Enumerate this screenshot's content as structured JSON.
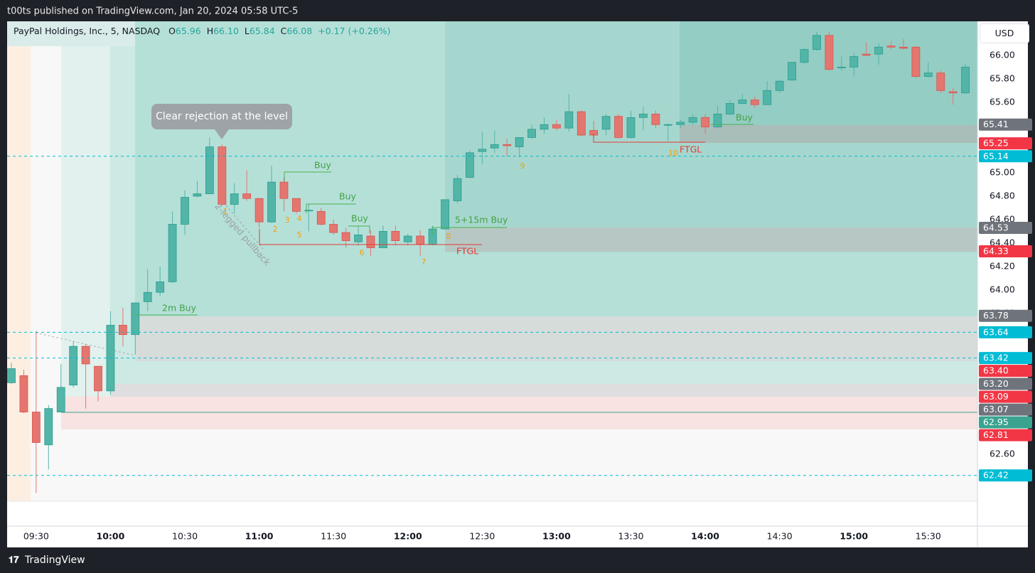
{
  "published": "t00ts published on TradingView.com, Jan 20, 2024 05:58 UTC-5",
  "brand": "TradingView",
  "chart_data": {
    "type": "candlestick",
    "title": "PayPal Holdings, Inc., 5, NASDAQ",
    "ohlc_legend": [
      {
        "key": "O",
        "value": "65.96"
      },
      {
        "key": "H",
        "value": "66.10"
      },
      {
        "key": "L",
        "value": "65.84"
      },
      {
        "key": "C",
        "value": "66.08"
      }
    ],
    "change": "+0.17 (+0.26%)",
    "currency": "USD",
    "categories": [
      null,
      null,
      "09:30",
      null,
      null,
      null,
      null,
      null,
      "10:00",
      null,
      null,
      null,
      null,
      null,
      "10:30",
      null,
      null,
      null,
      null,
      null,
      "11:00",
      null,
      null,
      null,
      null,
      null,
      "11:30",
      null,
      null,
      null,
      null,
      null,
      "12:00",
      null,
      null,
      null,
      null,
      null,
      "12:30",
      null,
      null,
      null,
      null,
      null,
      "13:00",
      null,
      null,
      null,
      null,
      null,
      "13:30",
      null,
      null,
      null,
      null,
      null,
      "14:00",
      null,
      null,
      null,
      null,
      null,
      "14:30",
      null,
      null,
      null,
      null,
      null,
      "15:00",
      null,
      null,
      null,
      null,
      null,
      "15:30",
      null,
      null,
      null
    ],
    "open": [
      63.21,
      63.27,
      62.96,
      62.68,
      62.96,
      63.19,
      63.52,
      63.35,
      63.14,
      63.7,
      63.62,
      63.9,
      63.98,
      64.07,
      64.56,
      64.8,
      64.82,
      65.22,
      64.73,
      64.82,
      64.78,
      64.58,
      64.92,
      64.78,
      64.68,
      64.67,
      64.56,
      64.49,
      64.41,
      64.46,
      64.36,
      64.5,
      64.41,
      64.46,
      64.39,
      64.52,
      64.76,
      64.96,
      65.18,
      65.21,
      65.24,
      65.22,
      65.3,
      65.37,
      65.41,
      65.38,
      65.52,
      65.36,
      65.37,
      65.48,
      65.3,
      65.47,
      65.5,
      65.41,
      65.41,
      65.43,
      65.47,
      65.39,
      65.5,
      65.59,
      65.62,
      65.58,
      65.7,
      65.79,
      65.94,
      66.05,
      66.17,
      65.9,
      65.9,
      66.01,
      66.01,
      66.08,
      66.07,
      66.07,
      65.82,
      65.85,
      65.69,
      65.68
    ],
    "high": [
      63.38,
      63.32,
      63.65,
      63.02,
      63.37,
      63.56,
      63.54,
      63.35,
      63.82,
      63.85,
      63.89,
      64.18,
      64.2,
      64.67,
      64.85,
      64.93,
      65.3,
      65.24,
      64.91,
      65.02,
      64.78,
      65.06,
      64.96,
      64.78,
      64.73,
      64.7,
      64.6,
      64.53,
      64.55,
      64.51,
      64.55,
      64.55,
      64.48,
      64.51,
      64.55,
      64.77,
      64.98,
      65.19,
      65.35,
      65.36,
      65.29,
      65.3,
      65.41,
      65.47,
      65.45,
      65.67,
      65.53,
      65.44,
      65.5,
      65.5,
      65.53,
      65.56,
      65.53,
      65.42,
      65.45,
      65.5,
      65.5,
      65.57,
      65.62,
      65.67,
      65.65,
      65.78,
      65.79,
      65.94,
      66.06,
      66.2,
      66.2,
      65.99,
      66.02,
      66.11,
      66.1,
      66.12,
      66.14,
      66.08,
      65.94,
      65.87,
      65.72,
      65.93
    ],
    "low": [
      63.2,
      62.95,
      62.27,
      62.47,
      62.96,
      63.17,
      62.99,
      63.05,
      63.11,
      63.52,
      63.45,
      63.82,
      63.95,
      64.06,
      64.47,
      64.79,
      64.82,
      64.72,
      64.65,
      64.76,
      64.53,
      64.57,
      64.67,
      64.65,
      64.5,
      64.55,
      64.47,
      64.36,
      64.38,
      64.29,
      64.36,
      64.38,
      64.38,
      64.29,
      64.38,
      64.52,
      64.74,
      64.95,
      65.07,
      65.17,
      65.14,
      65.13,
      65.29,
      65.33,
      65.36,
      65.35,
      65.31,
      65.29,
      65.32,
      65.29,
      65.29,
      65.36,
      65.38,
      65.27,
      65.38,
      65.41,
      65.33,
      65.38,
      65.49,
      65.58,
      65.55,
      65.58,
      65.68,
      65.78,
      65.93,
      66.04,
      65.87,
      65.87,
      65.82,
      65.99,
      65.92,
      66.05,
      66.05,
      65.81,
      65.81,
      65.68,
      65.58,
      65.67
    ],
    "close": [
      63.33,
      62.96,
      62.7,
      62.99,
      63.17,
      63.52,
      63.37,
      63.14,
      63.7,
      63.62,
      63.89,
      63.98,
      64.07,
      64.56,
      64.79,
      64.82,
      65.22,
      64.73,
      64.82,
      64.78,
      64.58,
      64.92,
      64.78,
      64.67,
      64.68,
      64.56,
      64.49,
      64.42,
      64.47,
      64.36,
      64.5,
      64.42,
      64.46,
      64.39,
      64.52,
      64.77,
      64.95,
      65.17,
      65.2,
      65.24,
      65.23,
      65.3,
      65.37,
      65.41,
      65.38,
      65.52,
      65.32,
      65.32,
      65.48,
      65.3,
      65.47,
      65.5,
      65.41,
      65.41,
      65.43,
      65.47,
      65.39,
      65.5,
      65.59,
      65.62,
      65.58,
      65.7,
      65.78,
      65.94,
      66.05,
      66.17,
      65.88,
      65.9,
      65.99,
      66.0,
      66.07,
      66.07,
      66.06,
      65.82,
      65.85,
      65.7,
      65.68,
      65.9
    ],
    "up_color": "#52b5a8",
    "down_color": "#e3776f",
    "ylim": [
      62.2,
      66.29
    ],
    "yticks": [
      {
        "value": 66,
        "label": "66.00"
      },
      {
        "value": 65.8,
        "label": "65.80"
      },
      {
        "value": 65.6,
        "label": "65.60"
      },
      {
        "value": 65,
        "label": "65.00"
      },
      {
        "value": 64.8,
        "label": "64.80"
      },
      {
        "value": 64.6,
        "label": "64.60"
      },
      {
        "value": 64.4,
        "label": "64.40"
      },
      {
        "value": 64.2,
        "label": "64.20"
      },
      {
        "value": 64,
        "label": "64.00"
      },
      {
        "value": 63.8,
        "label": "63.80"
      },
      {
        "value": 62.6,
        "label": "62.60"
      }
    ],
    "grid": false,
    "price_tags": [
      {
        "value": 65.41,
        "color": "#6f737c"
      },
      {
        "value": 65.25,
        "color": "#f23645"
      },
      {
        "value": 65.14,
        "color": "#00bcd4",
        "dashed": true
      },
      {
        "value": 64.53,
        "color": "#6f737c"
      },
      {
        "value": 64.33,
        "color": "#f23645"
      },
      {
        "value": 63.78,
        "color": "#6f737c"
      },
      {
        "value": 63.64,
        "color": "#00bcd4",
        "dashed": true
      },
      {
        "value": 63.42,
        "color": "#00bcd4",
        "dashed": true
      },
      {
        "value": 63.4,
        "label": "63.40",
        "color": "#f23645"
      },
      {
        "value": 63.2,
        "label": "63.20",
        "color": "#6f737c"
      },
      {
        "value": 63.09,
        "color": "#f23645"
      },
      {
        "value": 63.07,
        "color": "#6f737c"
      },
      {
        "value": 62.95,
        "color": "#3aa390"
      },
      {
        "value": 62.81,
        "color": "#f23645"
      },
      {
        "value": 62.42,
        "color": "#00bcd4",
        "dashed": true
      }
    ],
    "annotations": {
      "callout": "Clear rejection at the level",
      "pullback": "2-legged pullback",
      "buy_2m": "2m Buy",
      "buy": [
        "Buy",
        "Buy",
        "Buy",
        "Buy"
      ],
      "buy_5_15": "5+15m Buy",
      "ftgl": [
        "FTGL",
        "FTGL"
      ],
      "counts": [
        "1",
        "2",
        "3",
        "4",
        "5",
        "6",
        "7",
        "8",
        "9",
        "10"
      ]
    }
  }
}
